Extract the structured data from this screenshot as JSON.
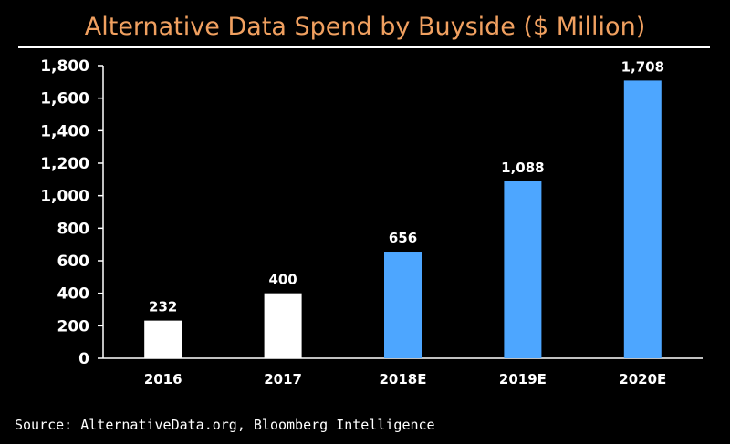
{
  "title": "Alternative Data Spend by Buyside ($ Million)",
  "source": "Source: AlternativeData.org, Bloomberg Intelligence",
  "colors": {
    "background": "#000000",
    "title": "#f0a060",
    "text": "#ffffff",
    "actual_bar": "#ffffff",
    "estimate_bar": "#4da6ff",
    "axis": "#ffffff"
  },
  "chart_data": {
    "type": "bar",
    "title": "Alternative Data Spend by Buyside ($ Million)",
    "xlabel": "",
    "ylabel": "",
    "categories": [
      "2016",
      "2017",
      "2018E",
      "2019E",
      "2020E"
    ],
    "values": [
      232,
      400,
      656,
      1088,
      1708
    ],
    "data_labels": [
      "232",
      "400",
      "656",
      "1,088",
      "1,708"
    ],
    "bar_kind": [
      "actual",
      "actual",
      "estimate",
      "estimate",
      "estimate"
    ],
    "ylim": [
      0,
      1800
    ],
    "yticks": [
      0,
      200,
      400,
      600,
      800,
      1000,
      1200,
      1400,
      1600,
      1800
    ],
    "ytick_labels": [
      "0",
      "200",
      "400",
      "600",
      "800",
      "1,000",
      "1,200",
      "1,400",
      "1,600",
      "1,800"
    ],
    "grid": false,
    "legend": "none"
  }
}
